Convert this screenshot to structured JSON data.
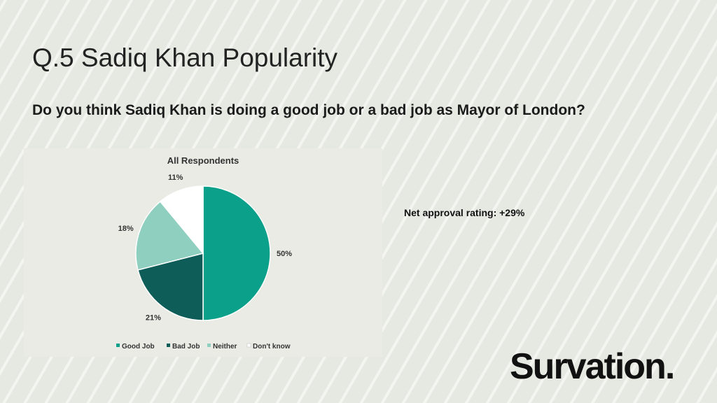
{
  "slide": {
    "title": "Q.5 Sadiq Khan Popularity",
    "question": "Do you think Sadiq Khan is doing a good job or a bad job as Mayor of London?",
    "net_approval": "Net approval rating: +29%",
    "logo_text": "Survation."
  },
  "chart_data": {
    "type": "pie",
    "title": "All Respondents",
    "categories": [
      "Good Job",
      "Bad Job",
      "Neither",
      "Don't know"
    ],
    "values": [
      50,
      21,
      18,
      11
    ],
    "labels": [
      "50%",
      "21%",
      "18%",
      "11%"
    ],
    "colors": [
      "#0aa08a",
      "#0f5d58",
      "#8fcfbf",
      "#ffffff"
    ],
    "legend_position": "bottom",
    "start": "12 o'clock, clockwise"
  }
}
